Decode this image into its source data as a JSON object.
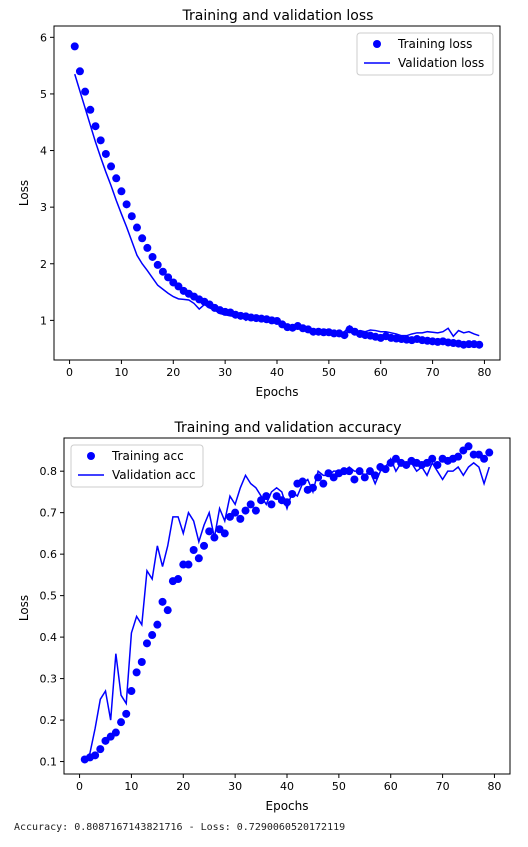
{
  "output_text": "Accuracy: 0.8087167143821716 - Loss: 0.7290060520172119",
  "colors": {
    "series": "#0000ff",
    "axis": "#000000",
    "background": "#ffffff"
  },
  "chart_data": [
    {
      "type": "scatter",
      "title": "Training and validation loss",
      "xlabel": "Epochs",
      "ylabel": "Loss",
      "xlim": [
        -3,
        83
      ],
      "ylim": [
        0.3,
        6.2
      ],
      "xticks": [
        0,
        10,
        20,
        30,
        40,
        50,
        60,
        70,
        80
      ],
      "yticks": [
        1,
        2,
        3,
        4,
        5,
        6
      ],
      "legend_position": "top-right",
      "grid": false,
      "x": [
        1,
        2,
        3,
        4,
        5,
        6,
        7,
        8,
        9,
        10,
        11,
        12,
        13,
        14,
        15,
        16,
        17,
        18,
        19,
        20,
        21,
        22,
        23,
        24,
        25,
        26,
        27,
        28,
        29,
        30,
        31,
        32,
        33,
        34,
        35,
        36,
        37,
        38,
        39,
        40,
        41,
        42,
        43,
        44,
        45,
        46,
        47,
        48,
        49,
        50,
        51,
        52,
        53,
        54,
        55,
        56,
        57,
        58,
        59,
        60,
        61,
        62,
        63,
        64,
        65,
        66,
        67,
        68,
        69,
        70,
        71,
        72,
        73,
        74,
        75,
        76,
        77,
        78,
        79
      ],
      "series": [
        {
          "name": "Training loss",
          "style": "markers",
          "values": [
            5.84,
            5.4,
            5.04,
            4.72,
            4.43,
            4.18,
            3.94,
            3.72,
            3.51,
            3.28,
            3.05,
            2.84,
            2.64,
            2.45,
            2.28,
            2.12,
            1.98,
            1.86,
            1.76,
            1.67,
            1.6,
            1.52,
            1.47,
            1.42,
            1.37,
            1.33,
            1.28,
            1.22,
            1.18,
            1.15,
            1.14,
            1.1,
            1.08,
            1.07,
            1.05,
            1.04,
            1.03,
            1.02,
            1.0,
            0.99,
            0.93,
            0.88,
            0.87,
            0.9,
            0.86,
            0.84,
            0.8,
            0.8,
            0.79,
            0.79,
            0.77,
            0.77,
            0.74,
            0.84,
            0.8,
            0.76,
            0.74,
            0.73,
            0.71,
            0.69,
            0.72,
            0.69,
            0.68,
            0.67,
            0.66,
            0.65,
            0.67,
            0.65,
            0.64,
            0.63,
            0.62,
            0.63,
            0.61,
            0.6,
            0.59,
            0.57,
            0.58,
            0.58,
            0.57
          ]
        },
        {
          "name": "Validation loss",
          "style": "line",
          "values": [
            5.35,
            5.05,
            4.75,
            4.45,
            4.15,
            3.88,
            3.62,
            3.38,
            3.12,
            2.88,
            2.65,
            2.4,
            2.15,
            2.0,
            1.88,
            1.75,
            1.62,
            1.55,
            1.48,
            1.42,
            1.38,
            1.37,
            1.36,
            1.3,
            1.2,
            1.28,
            1.22,
            1.18,
            1.12,
            1.1,
            1.08,
            1.07,
            1.08,
            1.0,
            1.05,
            1.02,
            1.0,
            0.99,
            0.98,
            0.96,
            0.93,
            0.88,
            0.85,
            0.93,
            0.87,
            0.85,
            0.82,
            0.82,
            0.84,
            0.83,
            0.8,
            0.72,
            0.8,
            0.9,
            0.75,
            0.82,
            0.8,
            0.83,
            0.82,
            0.8,
            0.8,
            0.78,
            0.76,
            0.73,
            0.73,
            0.76,
            0.78,
            0.78,
            0.8,
            0.79,
            0.78,
            0.8,
            0.86,
            0.72,
            0.82,
            0.78,
            0.8,
            0.76,
            0.73
          ]
        }
      ]
    },
    {
      "type": "scatter",
      "title": "Training and validation accuracy",
      "xlabel": "Epochs",
      "ylabel": "Loss",
      "xlim": [
        -3,
        83
      ],
      "ylim": [
        0.07,
        0.88
      ],
      "xticks": [
        0,
        10,
        20,
        30,
        40,
        50,
        60,
        70,
        80
      ],
      "yticks": [
        0.1,
        0.2,
        0.3,
        0.4,
        0.5,
        0.6,
        0.7,
        0.8
      ],
      "legend_position": "top-left",
      "grid": false,
      "x": [
        1,
        2,
        3,
        4,
        5,
        6,
        7,
        8,
        9,
        10,
        11,
        12,
        13,
        14,
        15,
        16,
        17,
        18,
        19,
        20,
        21,
        22,
        23,
        24,
        25,
        26,
        27,
        28,
        29,
        30,
        31,
        32,
        33,
        34,
        35,
        36,
        37,
        38,
        39,
        40,
        41,
        42,
        43,
        44,
        45,
        46,
        47,
        48,
        49,
        50,
        51,
        52,
        53,
        54,
        55,
        56,
        57,
        58,
        59,
        60,
        61,
        62,
        63,
        64,
        65,
        66,
        67,
        68,
        69,
        70,
        71,
        72,
        73,
        74,
        75,
        76,
        77,
        78,
        79
      ],
      "series": [
        {
          "name": "Training acc",
          "style": "markers",
          "values": [
            0.105,
            0.11,
            0.115,
            0.13,
            0.15,
            0.16,
            0.17,
            0.195,
            0.215,
            0.27,
            0.315,
            0.34,
            0.385,
            0.405,
            0.43,
            0.485,
            0.465,
            0.535,
            0.54,
            0.575,
            0.575,
            0.61,
            0.59,
            0.62,
            0.655,
            0.64,
            0.66,
            0.65,
            0.69,
            0.7,
            0.685,
            0.705,
            0.72,
            0.705,
            0.73,
            0.74,
            0.72,
            0.74,
            0.73,
            0.725,
            0.745,
            0.77,
            0.775,
            0.755,
            0.76,
            0.785,
            0.77,
            0.795,
            0.785,
            0.795,
            0.8,
            0.8,
            0.78,
            0.8,
            0.785,
            0.8,
            0.79,
            0.81,
            0.805,
            0.82,
            0.83,
            0.82,
            0.815,
            0.825,
            0.82,
            0.815,
            0.82,
            0.83,
            0.815,
            0.83,
            0.825,
            0.83,
            0.835,
            0.85,
            0.86,
            0.84,
            0.84,
            0.83,
            0.845
          ]
        },
        {
          "name": "Validation acc",
          "style": "line",
          "values": [
            0.1,
            0.12,
            0.18,
            0.25,
            0.27,
            0.2,
            0.36,
            0.26,
            0.24,
            0.41,
            0.45,
            0.43,
            0.56,
            0.54,
            0.62,
            0.57,
            0.62,
            0.69,
            0.69,
            0.65,
            0.7,
            0.68,
            0.63,
            0.67,
            0.7,
            0.64,
            0.71,
            0.68,
            0.74,
            0.72,
            0.76,
            0.79,
            0.77,
            0.76,
            0.74,
            0.72,
            0.75,
            0.76,
            0.75,
            0.71,
            0.75,
            0.74,
            0.77,
            0.78,
            0.75,
            0.8,
            0.79,
            0.79,
            0.8,
            0.8,
            0.8,
            0.81,
            0.8,
            0.8,
            0.79,
            0.8,
            0.77,
            0.8,
            0.81,
            0.83,
            0.8,
            0.82,
            0.81,
            0.82,
            0.8,
            0.81,
            0.79,
            0.82,
            0.8,
            0.78,
            0.8,
            0.8,
            0.81,
            0.79,
            0.81,
            0.82,
            0.81,
            0.77,
            0.81
          ]
        }
      ]
    }
  ]
}
